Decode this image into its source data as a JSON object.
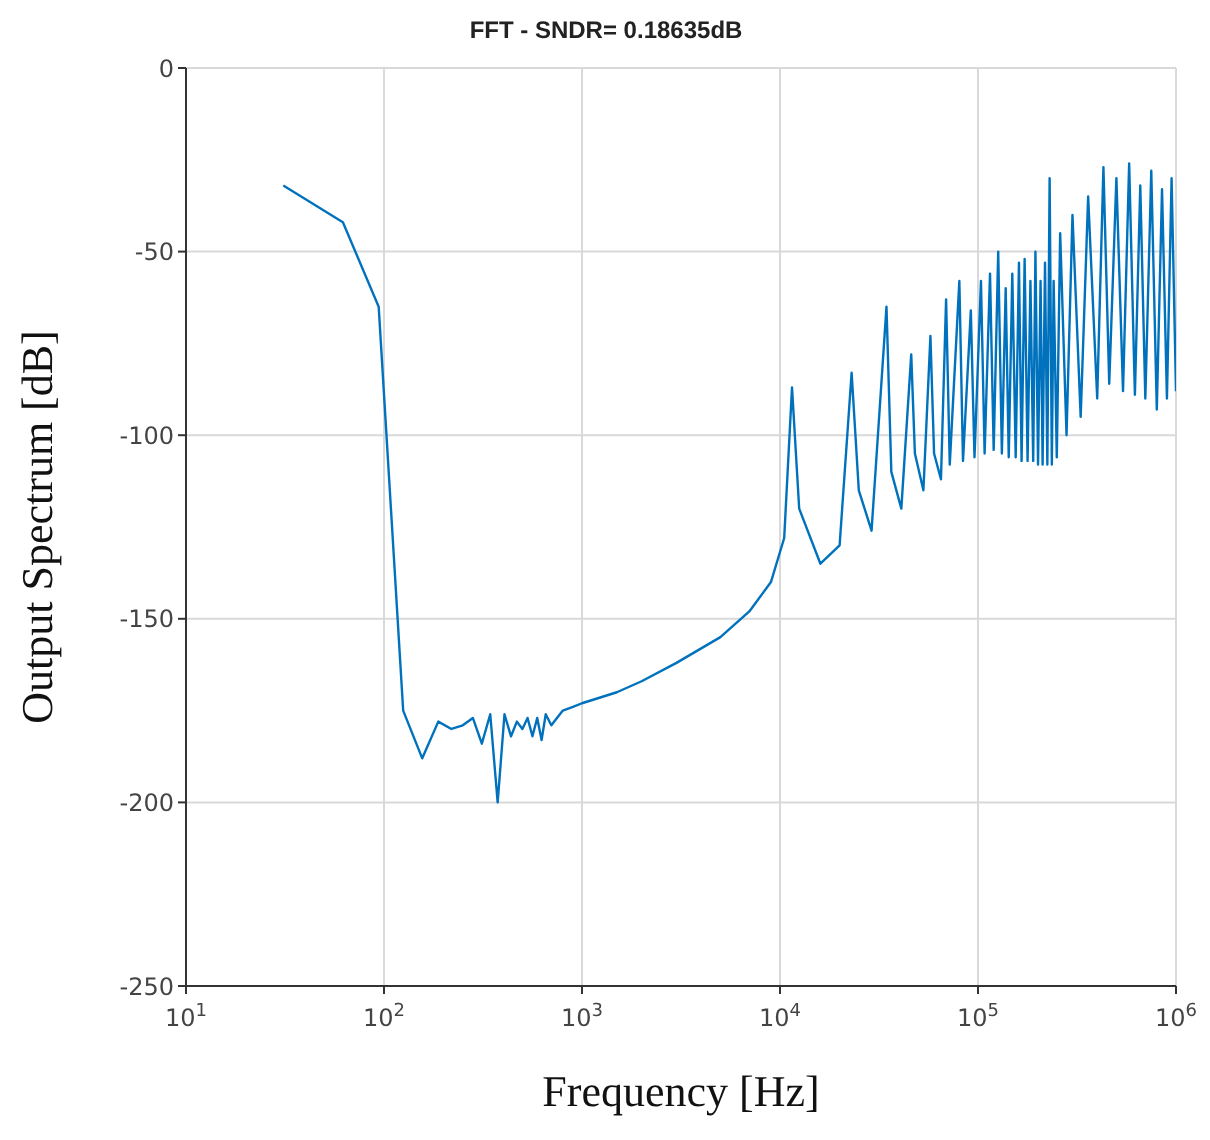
{
  "chart_data": {
    "type": "line",
    "title": "FFT - SNDR= 0.18635dB",
    "xlabel": "Frequency [Hz]",
    "ylabel": "Output Spectrum [dB]",
    "log": "x",
    "grid": true,
    "marker": "none",
    "line_style": "solid",
    "xlim": [
      10,
      1000000
    ],
    "xticks": [
      {
        "value": 10,
        "label": "10$^{1}$"
      },
      {
        "value": 100,
        "label": "10$^{2}$"
      },
      {
        "value": 1000,
        "label": "10$^{3}$"
      },
      {
        "value": 10000,
        "label": "10$^{4}$"
      },
      {
        "value": 100000,
        "label": "10$^{5}$"
      },
      {
        "value": 1000000,
        "label": "10$^{6}$"
      }
    ],
    "ylim": [
      -250,
      0
    ],
    "yticks": [
      -250,
      -200,
      -150,
      -100,
      -50,
      0
    ],
    "series": [
      {
        "color": "#0072bd",
        "x": [
          31,
          62,
          94,
          125,
          156,
          188,
          219,
          250,
          281,
          312,
          344,
          375,
          406,
          438,
          469,
          500,
          531,
          562,
          594,
          625,
          656,
          700,
          800,
          900,
          1000,
          1500,
          2000,
          3000,
          5000,
          7000,
          9000,
          10500,
          11500,
          12500,
          16000,
          20000,
          23000,
          25000,
          29000,
          34500,
          36500,
          41000,
          46000,
          48000,
          53000,
          57500,
          60000,
          65000,
          69000,
          72000,
          80500,
          84000,
          92000,
          96000,
          103500,
          108000,
          115000,
          120000,
          126500,
          132000,
          138000,
          143000,
          149000,
          155000,
          161000,
          166000,
          172000,
          178000,
          184000,
          190000,
          195000,
          201000,
          207000,
          212000,
          218000,
          224000,
          230000,
          236000,
          241000,
          250000,
          260000,
          280000,
          300000,
          330000,
          360000,
          400000,
          430000,
          460000,
          500000,
          540000,
          580000,
          620000,
          660000,
          700000,
          750000,
          800000,
          850000,
          900000,
          950000,
          1000000
        ],
        "values": [
          -32,
          -42,
          -65,
          -175,
          -188,
          -178,
          -180,
          -179,
          -177,
          -184,
          -176,
          -200,
          -176,
          -182,
          -178,
          -180,
          -177,
          -182,
          -177,
          -183,
          -176,
          -179,
          -175,
          -174,
          -173,
          -170,
          -167,
          -162,
          -155,
          -148,
          -140,
          -128,
          -87,
          -120,
          -135,
          -130,
          -83,
          -115,
          -126,
          -65,
          -110,
          -120,
          -78,
          -105,
          -115,
          -73,
          -105,
          -112,
          -63,
          -108,
          -58,
          -107,
          -66,
          -106,
          -58,
          -105,
          -56,
          -104,
          -50,
          -105,
          -60,
          -106,
          -56,
          -106,
          -53,
          -107,
          -52,
          -107,
          -58,
          -107,
          -50,
          -108,
          -58,
          -108,
          -53,
          -108,
          -30,
          -108,
          -58,
          -106,
          -45,
          -100,
          -40,
          -95,
          -35,
          -90,
          -27,
          -86,
          -30,
          -88,
          -26,
          -89,
          -32,
          -90,
          -28,
          -93,
          -33,
          -90,
          -30,
          -88
        ]
      }
    ]
  }
}
